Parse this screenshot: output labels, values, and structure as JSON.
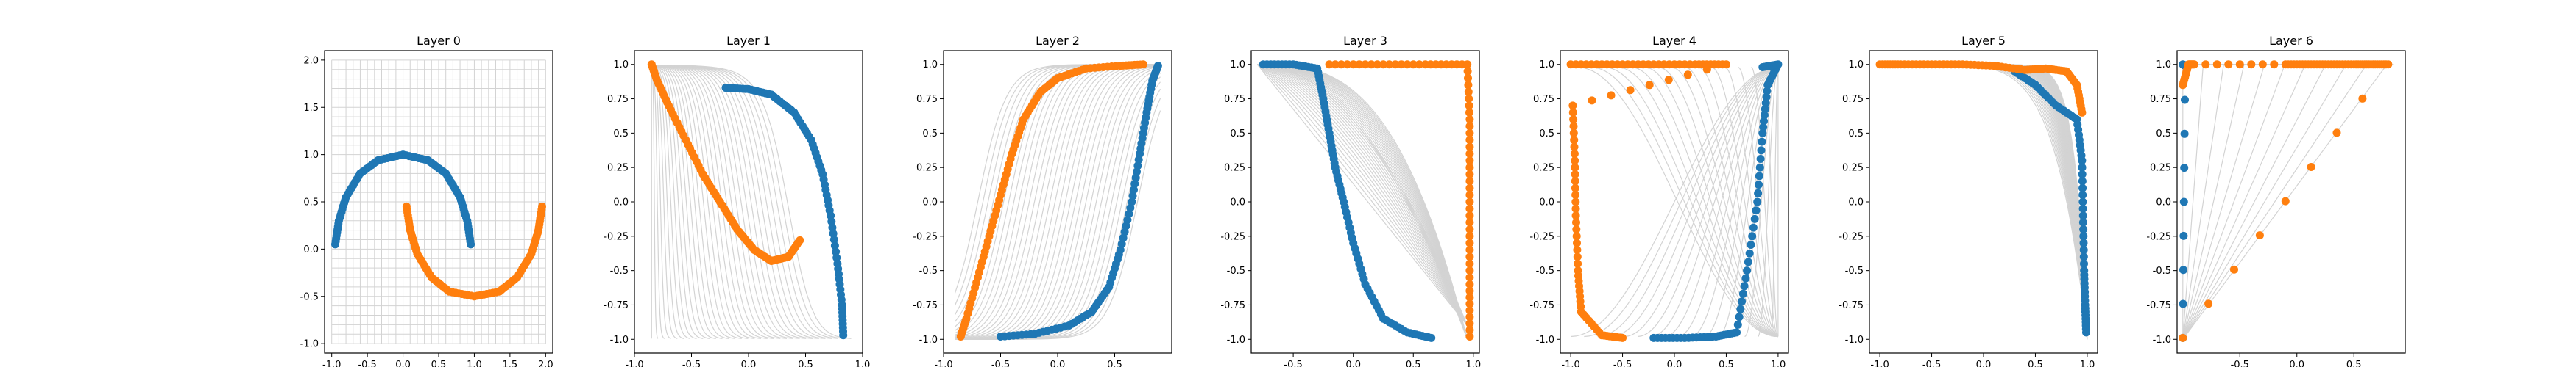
{
  "chart_data": [
    {
      "type": "scatter",
      "title": "Layer 0",
      "xlim": [
        -1.1,
        2.1
      ],
      "ylim": [
        -1.1,
        2.1
      ],
      "xticks": [
        -1.0,
        -0.5,
        0.0,
        0.5,
        1.0,
        1.5,
        2.0
      ],
      "yticks": [
        -1.0,
        -0.5,
        0.0,
        0.5,
        1.0,
        1.5,
        2.0
      ],
      "grid_lines": "rectangular grid of light-gray lines spanning x -1.0..2.0 and y -1.0..2.0",
      "series": [
        {
          "color": "#1f77b4",
          "points": [
            [
              -0.95,
              0.05
            ],
            [
              -0.9,
              0.3
            ],
            [
              -0.8,
              0.55
            ],
            [
              -0.6,
              0.8
            ],
            [
              -0.35,
              0.94
            ],
            [
              0.0,
              1.0
            ],
            [
              0.35,
              0.94
            ],
            [
              0.6,
              0.8
            ],
            [
              0.8,
              0.55
            ],
            [
              0.9,
              0.3
            ],
            [
              0.95,
              0.05
            ]
          ]
        },
        {
          "color": "#ff7f0e",
          "points": [
            [
              0.05,
              0.45
            ],
            [
              0.1,
              0.2
            ],
            [
              0.2,
              -0.05
            ],
            [
              0.4,
              -0.3
            ],
            [
              0.65,
              -0.45
            ],
            [
              1.0,
              -0.5
            ],
            [
              1.35,
              -0.45
            ],
            [
              1.6,
              -0.3
            ],
            [
              1.8,
              -0.05
            ],
            [
              1.9,
              0.2
            ],
            [
              1.95,
              0.45
            ]
          ]
        }
      ]
    },
    {
      "type": "scatter",
      "title": "Layer 1",
      "xlim": [
        -1.0,
        1.0
      ],
      "ylim": [
        -1.1,
        1.1
      ],
      "xticks": [
        -1.0,
        -0.5,
        0.0,
        0.5,
        1.0
      ],
      "yticks": [
        -1.0,
        -0.75,
        -0.5,
        -0.25,
        0.0,
        0.25,
        0.5,
        0.75,
        1.0
      ],
      "series": [
        {
          "color": "#1f77b4",
          "points": [
            [
              -0.2,
              0.83
            ],
            [
              0.0,
              0.82
            ],
            [
              0.2,
              0.78
            ],
            [
              0.4,
              0.65
            ],
            [
              0.55,
              0.45
            ],
            [
              0.65,
              0.2
            ],
            [
              0.72,
              -0.1
            ],
            [
              0.78,
              -0.45
            ],
            [
              0.82,
              -0.75
            ],
            [
              0.83,
              -0.97
            ]
          ]
        },
        {
          "color": "#ff7f0e",
          "points": [
            [
              -0.85,
              1.0
            ],
            [
              -0.8,
              0.88
            ],
            [
              -0.7,
              0.7
            ],
            [
              -0.55,
              0.45
            ],
            [
              -0.4,
              0.2
            ],
            [
              -0.25,
              0.0
            ],
            [
              -0.1,
              -0.2
            ],
            [
              0.05,
              -0.35
            ],
            [
              0.2,
              -0.43
            ],
            [
              0.35,
              -0.4
            ],
            [
              0.45,
              -0.28
            ]
          ]
        }
      ]
    },
    {
      "type": "scatter",
      "title": "Layer 2",
      "xlim": [
        -1.0,
        1.0
      ],
      "ylim": [
        -1.1,
        1.1
      ],
      "xticks": [
        -1.0,
        -0.5,
        0.0,
        0.5
      ],
      "yticks": [
        -1.0,
        -0.75,
        -0.5,
        -0.25,
        0.0,
        0.25,
        0.5,
        0.75,
        1.0
      ],
      "series": [
        {
          "color": "#1f77b4",
          "points": [
            [
              -0.5,
              -0.98
            ],
            [
              -0.2,
              -0.96
            ],
            [
              0.1,
              -0.9
            ],
            [
              0.3,
              -0.8
            ],
            [
              0.45,
              -0.62
            ],
            [
              0.55,
              -0.35
            ],
            [
              0.65,
              0.0
            ],
            [
              0.72,
              0.35
            ],
            [
              0.78,
              0.65
            ],
            [
              0.83,
              0.88
            ],
            [
              0.88,
              0.99
            ]
          ]
        },
        {
          "color": "#ff7f0e",
          "points": [
            [
              -0.85,
              -0.98
            ],
            [
              -0.8,
              -0.85
            ],
            [
              -0.7,
              -0.55
            ],
            [
              -0.6,
              -0.25
            ],
            [
              -0.5,
              0.05
            ],
            [
              -0.4,
              0.35
            ],
            [
              -0.3,
              0.6
            ],
            [
              -0.15,
              0.8
            ],
            [
              0.0,
              0.9
            ],
            [
              0.25,
              0.97
            ],
            [
              0.55,
              0.99
            ],
            [
              0.75,
              1.0
            ]
          ]
        }
      ]
    },
    {
      "type": "scatter",
      "title": "Layer 3",
      "xlim": [
        -0.85,
        1.05
      ],
      "ylim": [
        -1.1,
        1.1
      ],
      "xticks": [
        -0.5,
        0.0,
        0.5,
        1.0
      ],
      "yticks": [
        -1.0,
        -0.75,
        -0.5,
        -0.25,
        0.0,
        0.25,
        0.5,
        0.75,
        1.0
      ],
      "series": [
        {
          "color": "#1f77b4",
          "points": [
            [
              -0.75,
              1.0
            ],
            [
              -0.5,
              1.0
            ],
            [
              -0.3,
              0.97
            ],
            [
              -0.25,
              0.75
            ],
            [
              -0.2,
              0.5
            ],
            [
              -0.15,
              0.25
            ],
            [
              -0.08,
              0.0
            ],
            [
              0.0,
              -0.3
            ],
            [
              0.1,
              -0.6
            ],
            [
              0.25,
              -0.85
            ],
            [
              0.45,
              -0.95
            ],
            [
              0.65,
              -0.99
            ]
          ]
        },
        {
          "color": "#ff7f0e",
          "points": [
            [
              -0.2,
              1.0
            ],
            [
              0.2,
              1.0
            ],
            [
              0.6,
              1.0
            ],
            [
              0.95,
              1.0
            ],
            [
              0.97,
              0.6
            ],
            [
              0.97,
              0.2
            ],
            [
              0.97,
              -0.2
            ],
            [
              0.97,
              -0.6
            ],
            [
              0.97,
              -0.98
            ]
          ]
        }
      ]
    },
    {
      "type": "scatter",
      "title": "Layer 4",
      "xlim": [
        -1.1,
        1.1
      ],
      "ylim": [
        -1.1,
        1.1
      ],
      "xticks": [
        -1.0,
        -0.5,
        0.0,
        0.5,
        1.0
      ],
      "yticks": [
        -1.0,
        -0.75,
        -0.5,
        -0.25,
        0.0,
        0.25,
        0.5,
        0.75,
        1.0
      ],
      "series": [
        {
          "color": "#1f77b4",
          "points": [
            [
              -0.2,
              -0.99
            ],
            [
              0.1,
              -0.99
            ],
            [
              0.4,
              -0.98
            ],
            [
              0.6,
              -0.95
            ],
            [
              0.7,
              -0.5
            ],
            [
              0.8,
              0.0
            ],
            [
              0.85,
              0.5
            ],
            [
              0.9,
              0.85
            ],
            [
              1.0,
              1.0
            ],
            [
              0.85,
              0.98
            ]
          ]
        },
        {
          "color": "#ff7f0e",
          "points": [
            [
              -1.0,
              1.0
            ],
            [
              -0.6,
              1.0
            ],
            [
              -0.2,
              1.0
            ],
            [
              0.2,
              1.0
            ],
            [
              0.5,
              1.0
            ],
            [
              -0.98,
              0.7
            ],
            [
              -0.96,
              0.3
            ],
            [
              -0.95,
              -0.1
            ],
            [
              -0.93,
              -0.5
            ],
            [
              -0.9,
              -0.8
            ],
            [
              -0.7,
              -0.97
            ],
            [
              -0.5,
              -0.99
            ]
          ]
        }
      ]
    },
    {
      "type": "scatter",
      "title": "Layer 5",
      "xlim": [
        -1.1,
        1.1
      ],
      "ylim": [
        -1.1,
        1.1
      ],
      "xticks": [
        -1.0,
        -0.5,
        0.0,
        0.5,
        1.0
      ],
      "yticks": [
        -1.0,
        -0.75,
        -0.5,
        -0.25,
        0.0,
        0.25,
        0.5,
        0.75,
        1.0
      ],
      "series": [
        {
          "color": "#1f77b4",
          "points": [
            [
              0.3,
              0.95
            ],
            [
              0.5,
              0.85
            ],
            [
              0.7,
              0.7
            ],
            [
              0.9,
              0.6
            ],
            [
              0.95,
              0.3
            ],
            [
              0.96,
              -0.1
            ],
            [
              0.97,
              -0.5
            ],
            [
              0.98,
              -0.75
            ],
            [
              0.99,
              -0.95
            ]
          ]
        },
        {
          "color": "#ff7f0e",
          "points": [
            [
              -1.0,
              1.0
            ],
            [
              -0.8,
              1.0
            ],
            [
              -0.5,
              1.0
            ],
            [
              -0.2,
              1.0
            ],
            [
              0.1,
              0.99
            ],
            [
              0.4,
              0.96
            ],
            [
              0.6,
              0.97
            ],
            [
              0.8,
              0.95
            ],
            [
              0.9,
              0.85
            ],
            [
              0.95,
              0.65
            ]
          ]
        }
      ]
    },
    {
      "type": "scatter",
      "title": "Layer 6",
      "xlim": [
        -1.05,
        0.95
      ],
      "ylim": [
        -1.1,
        1.1
      ],
      "xticks": [
        -0.5,
        0.0,
        0.5
      ],
      "yticks": [
        -1.0,
        -0.75,
        -0.5,
        -0.25,
        0.0,
        0.25,
        0.5,
        0.75,
        1.0
      ],
      "series": [
        {
          "color": "#1f77b4",
          "points": [
            [
              -1.0,
              1.0
            ],
            [
              -0.98,
              0.99
            ],
            [
              -1.0,
              -0.99
            ]
          ]
        },
        {
          "color": "#ff7f0e",
          "points": [
            [
              -1.0,
              0.85
            ],
            [
              -0.95,
              1.0
            ],
            [
              -0.9,
              1.0
            ],
            [
              -0.1,
              1.0
            ],
            [
              0.1,
              1.0
            ],
            [
              0.3,
              1.0
            ],
            [
              0.5,
              1.0
            ],
            [
              0.65,
              1.0
            ],
            [
              0.8,
              1.0
            ],
            [
              -1.0,
              -0.99
            ]
          ]
        }
      ]
    }
  ]
}
